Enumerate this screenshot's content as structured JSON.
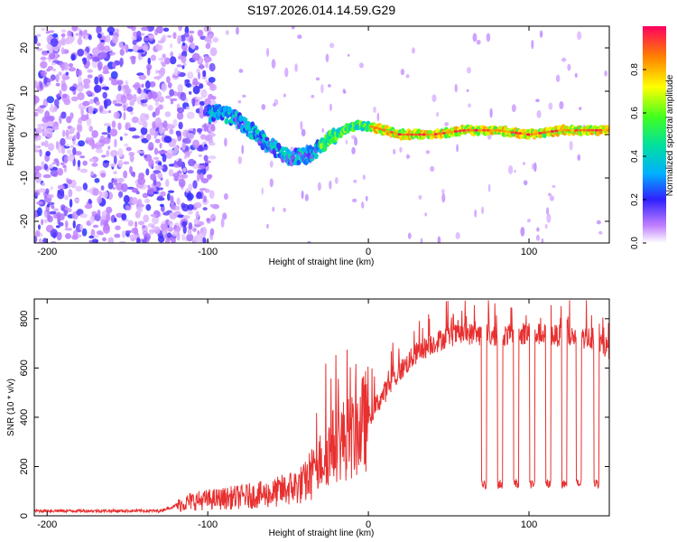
{
  "title": "S197.2026.014.14.59.G29",
  "chart_data": [
    {
      "type": "heatmap",
      "xlabel": "Height of straight line (km)",
      "ylabel": "Frequency (Hz)",
      "xlim": [
        -208,
        150
      ],
      "ylim": [
        -25,
        25
      ],
      "xticks": [
        -200,
        -100,
        0,
        100
      ],
      "yticks": [
        -20,
        -10,
        0,
        10,
        20
      ],
      "ridge": [
        [
          -100,
          5
        ],
        [
          -90,
          5
        ],
        [
          -80,
          3
        ],
        [
          -70,
          0
        ],
        [
          -60,
          -3
        ],
        [
          -50,
          -5
        ],
        [
          -40,
          -5
        ],
        [
          -30,
          -3
        ],
        [
          -20,
          0
        ],
        [
          -10,
          2
        ],
        [
          0,
          2
        ],
        [
          10,
          1
        ],
        [
          20,
          0
        ],
        [
          40,
          0
        ],
        [
          60,
          1
        ],
        [
          80,
          1
        ],
        [
          100,
          0
        ],
        [
          120,
          1
        ],
        [
          150,
          1
        ]
      ],
      "colorbar": {
        "label": "Normalized spectral amplitude",
        "ticks": [
          0.0,
          0.2,
          0.4,
          0.6,
          0.8
        ],
        "range": [
          0,
          1
        ]
      }
    },
    {
      "type": "line",
      "xlabel": "Height of straight line (km)",
      "ylabel": "SNR (10 * v/v)",
      "xlim": [
        -208,
        150
      ],
      "ylim": [
        0,
        880
      ],
      "xticks": [
        -200,
        -100,
        0,
        100
      ],
      "yticks": [
        0,
        200,
        400,
        600,
        800
      ],
      "series": [
        {
          "name": "SNR",
          "color": "#e83030",
          "points": [
            [
              -208,
              20
            ],
            [
              -130,
              20
            ],
            [
              -110,
              60
            ],
            [
              -90,
              70
            ],
            [
              -60,
              90
            ],
            [
              -40,
              130
            ],
            [
              -30,
              220
            ],
            [
              -20,
              300
            ],
            [
              -10,
              320
            ],
            [
              0,
              400
            ],
            [
              10,
              500
            ],
            [
              20,
              590
            ],
            [
              30,
              660
            ],
            [
              40,
              700
            ],
            [
              50,
              730
            ],
            [
              60,
              740
            ],
            [
              80,
              730
            ],
            [
              100,
              740
            ],
            [
              120,
              730
            ],
            [
              140,
              720
            ],
            [
              150,
              680
            ]
          ],
          "dropouts": [
            72,
            82,
            92,
            102,
            112,
            122,
            131,
            142
          ]
        }
      ]
    }
  ]
}
